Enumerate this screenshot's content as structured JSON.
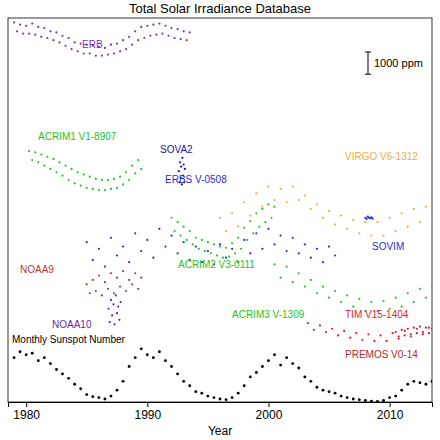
{
  "chart_data": {
    "type": "scatter",
    "title": "Total Solar Irradiance Database",
    "x_label": "Year",
    "xlim": [
      1978.5,
      2013.5
    ],
    "xticks": [
      1980,
      1990,
      2000,
      2010
    ],
    "ylim": [
      0,
      17300
    ],
    "y2lim": [
      0,
      1300
    ],
    "tick_labels": "x",
    "marker": "dot",
    "scale_bar": {
      "label": "1000 ppm",
      "value": 1000
    },
    "series": [
      {
        "name": "ERB",
        "color": "#7b2fbe",
        "x": [
          1979.0,
          1979.25,
          1979.5,
          1979.75,
          1980.0,
          1980.25,
          1980.5,
          1980.75,
          1981.0,
          1981.25,
          1981.5,
          1981.75,
          1982.0,
          1982.25,
          1982.5,
          1982.75,
          1983.0,
          1983.25,
          1983.5,
          1983.75,
          1984.0,
          1984.25,
          1984.5,
          1984.75,
          1985.0,
          1985.25,
          1985.5,
          1985.75,
          1986.0,
          1986.25,
          1986.5,
          1986.75,
          1987.0,
          1987.25,
          1987.5,
          1987.75,
          1988.0,
          1988.25,
          1988.5,
          1988.75,
          1989.0,
          1989.25,
          1989.5,
          1989.75,
          1990.0,
          1990.25,
          1990.5,
          1990.75,
          1991.0,
          1991.25,
          1991.5,
          1991.75,
          1992.0,
          1992.25,
          1992.5,
          1992.75,
          1993.0,
          1993.25,
          1993.5
        ],
        "values": [
          17100,
          16700,
          17000,
          16600,
          16950,
          16600,
          17050,
          16550,
          16900,
          16450,
          16850,
          16400,
          16700,
          16300,
          16650,
          16200,
          16500,
          16050,
          16400,
          15900,
          16200,
          15800,
          16150,
          15700,
          16100,
          15700,
          16050,
          15600,
          16000,
          15600,
          15950,
          15650,
          16100,
          15700,
          16150,
          15800,
          16300,
          15900,
          16450,
          16100,
          16700,
          16300,
          16900,
          16400,
          16950,
          16500,
          17000,
          16550,
          17050,
          16600,
          16950,
          16500,
          16850,
          16400,
          16800,
          16350,
          16700,
          16300,
          16650
        ]
      },
      {
        "name": "ACRIM1 V1-8907",
        "color": "#22c422",
        "x": [
          1980.25,
          1980.5,
          1980.75,
          1981.0,
          1981.25,
          1981.5,
          1981.75,
          1982.0,
          1982.25,
          1982.5,
          1982.75,
          1983.0,
          1983.25,
          1983.5,
          1983.75,
          1984.0,
          1984.25,
          1984.5,
          1984.75,
          1985.0,
          1985.25,
          1985.5,
          1985.75,
          1986.0,
          1986.25,
          1986.5,
          1986.75,
          1987.0,
          1987.25,
          1987.5,
          1987.75,
          1988.0,
          1988.25,
          1988.5,
          1988.75,
          1989.0,
          1989.25,
          1989.5
        ],
        "values": [
          11300,
          10900,
          11250,
          10800,
          11150,
          10650,
          11050,
          10500,
          10950,
          10350,
          10800,
          10200,
          10650,
          10000,
          10500,
          9850,
          10350,
          9750,
          10250,
          9650,
          10150,
          9600,
          10050,
          9550,
          10000,
          9550,
          10000,
          9600,
          10050,
          9650,
          10150,
          9800,
          10350,
          10000,
          10650,
          10300,
          10900,
          10500
        ]
      },
      {
        "name": "NOAA9",
        "color": "#b03a2e",
        "x": [
          1985.0,
          1985.25,
          1985.5,
          1985.75,
          1986.0,
          1986.25,
          1986.5,
          1986.75,
          1987.0,
          1987.25,
          1987.5,
          1987.75,
          1988.0,
          1988.25,
          1988.5,
          1988.75,
          1989.0,
          1989.25,
          1989.5
        ],
        "values": [
          5300,
          4900,
          5500,
          5000,
          5700,
          4800,
          5400,
          5100,
          5800,
          4900,
          5600,
          5200,
          5900,
          5000,
          5500,
          5300,
          5800,
          5100,
          5600
        ]
      },
      {
        "name": "NOAA10",
        "color": "#6a1fa8",
        "x": [
          1986.8,
          1986.9,
          1987.0,
          1987.1,
          1987.2,
          1987.3,
          1987.4,
          1987.5,
          1987.6,
          1987.7,
          1987.8
        ],
        "values": [
          4200,
          3600,
          4600,
          3900,
          4400,
          3500,
          4800,
          4000,
          4300,
          3700,
          4500
        ]
      },
      {
        "name": "ERBS V-0508",
        "color": "#2b2bd0",
        "x": [
          1985.0,
          1985.5,
          1986.0,
          1986.5,
          1987.0,
          1987.5,
          1988.0,
          1988.5,
          1989.0,
          1989.5,
          1990.0,
          1990.5,
          1991.0,
          1991.5,
          1992.0,
          1992.5,
          1993.0,
          1993.5,
          1994.0,
          1994.5,
          1995.0,
          1995.5,
          1996.0,
          1996.5,
          1997.0,
          1997.5,
          1998.0,
          1998.5,
          1999.0,
          1999.5,
          2000.0,
          2000.5,
          2001.0,
          2001.5,
          2002.0,
          2002.5,
          2003.0,
          2003.5,
          2004.0,
          2004.5,
          2005.0,
          2005.5
        ],
        "values": [
          7200,
          6400,
          6900,
          6100,
          7400,
          6600,
          7000,
          6300,
          7600,
          6800,
          7300,
          6500,
          7800,
          7000,
          7500,
          6700,
          7200,
          6400,
          7000,
          6300,
          6800,
          6200,
          7100,
          6500,
          6900,
          6300,
          7300,
          6700,
          7600,
          6900,
          7800,
          7100,
          7500,
          6800,
          7400,
          6700,
          7100,
          6500,
          6900,
          6300,
          7000,
          6600
        ]
      },
      {
        "name": "SOVA2",
        "color": "#1a1a9a",
        "x": [
          1992.6,
          1992.65,
          1992.7,
          1992.75,
          1992.8,
          1992.85,
          1992.9,
          1992.95,
          1993.0,
          1993.05,
          1993.1
        ],
        "values": [
          10400,
          9900,
          10800,
          10100,
          10600,
          9800,
          11000,
          10200,
          10700,
          9900,
          10500
        ]
      },
      {
        "name": "ACRIM2 V3-0111",
        "color": "#22c422",
        "x": [
          1992.0,
          1992.25,
          1992.5,
          1992.75,
          1993.0,
          1993.25,
          1993.5,
          1993.75,
          1994.0,
          1994.25,
          1994.5,
          1994.75,
          1995.0,
          1995.25,
          1995.5,
          1995.75,
          1996.0,
          1996.25,
          1996.5,
          1996.75,
          1997.0,
          1997.25,
          1997.5,
          1997.75,
          1998.0,
          1998.25,
          1998.5,
          1998.75,
          1999.0,
          1999.25,
          1999.5,
          1999.75,
          2000.0,
          2000.25,
          2000.5
        ],
        "values": [
          8300,
          7700,
          8100,
          7500,
          7900,
          7300,
          7700,
          7100,
          7400,
          6900,
          7300,
          6800,
          7200,
          6700,
          7100,
          6600,
          7000,
          6500,
          6950,
          6550,
          7150,
          6700,
          7400,
          6900,
          7850,
          7300,
          8150,
          7600,
          8500,
          7900,
          8700,
          8100,
          8900,
          8300,
          8800
        ]
      },
      {
        "name": "VIRGO V6-1312",
        "color": "#f5a742",
        "x": [
          1996.0,
          1996.5,
          1997.0,
          1997.5,
          1998.0,
          1998.5,
          1999.0,
          1999.5,
          2000.0,
          2000.5,
          2001.0,
          2001.5,
          2002.0,
          2002.5,
          2003.0,
          2003.5,
          2004.0,
          2004.5,
          2005.0,
          2005.5,
          2006.0,
          2006.5,
          2007.0,
          2007.5,
          2008.0,
          2008.5,
          2009.0,
          2009.5,
          2010.0,
          2010.5,
          2011.0,
          2011.5,
          2012.0,
          2012.5,
          2013.0,
          2013.5
        ],
        "values": [
          8300,
          7700,
          8500,
          7900,
          9000,
          8400,
          9400,
          8800,
          9700,
          9100,
          9600,
          9000,
          9700,
          9100,
          9300,
          8700,
          8900,
          8300,
          8600,
          8000,
          8400,
          7800,
          8200,
          7600,
          8100,
          7500,
          8100,
          7500,
          8300,
          7700,
          8500,
          7900,
          8700,
          8100,
          8800,
          8200
        ]
      },
      {
        "name": "ACRIM3 V-1309",
        "color": "#22c422",
        "x": [
          2000.5,
          2001.0,
          2001.5,
          2002.0,
          2002.5,
          2003.0,
          2003.5,
          2004.0,
          2004.5,
          2005.0,
          2005.5,
          2006.0,
          2006.5,
          2007.0,
          2007.5,
          2008.0,
          2008.5,
          2009.0,
          2009.5,
          2010.0,
          2010.5,
          2011.0,
          2011.5,
          2012.0,
          2012.5,
          2013.0,
          2013.5
        ],
        "values": [
          6200,
          5600,
          6100,
          5400,
          5800,
          5200,
          5500,
          4900,
          5200,
          4700,
          5000,
          4500,
          4800,
          4300,
          4650,
          4100,
          4500,
          4100,
          4550,
          4200,
          4700,
          4300,
          4900,
          4500,
          5100,
          4700,
          5200
        ]
      },
      {
        "name": "TIM V15-1404",
        "color": "#e01f1f",
        "x": [
          2003.25,
          2003.75,
          2004.25,
          2004.75,
          2005.25,
          2005.75,
          2006.25,
          2006.75,
          2007.25,
          2007.75,
          2008.25,
          2008.75,
          2009.25,
          2009.75,
          2010.25,
          2010.75,
          2011.25,
          2011.75,
          2012.25,
          2012.75,
          2013.25
        ],
        "values": [
          3550,
          3250,
          3450,
          3150,
          3300,
          3000,
          3200,
          2900,
          3100,
          2800,
          3050,
          2750,
          3000,
          2750,
          3100,
          2850,
          3200,
          2950,
          3300,
          3050,
          3350
        ]
      },
      {
        "name": "PREMOS V0-14",
        "color": "#b02828",
        "x": [
          2010.5,
          2010.75,
          2011.0,
          2011.25,
          2011.5,
          2011.75,
          2012.0,
          2012.25,
          2012.5,
          2012.75,
          2013.0,
          2013.25,
          2013.5
        ],
        "values": [
          3150,
          2950,
          3250,
          3000,
          3300,
          3050,
          3350,
          3100,
          3400,
          3150,
          3350,
          3100,
          3300
        ]
      },
      {
        "name": "SOVIM",
        "color": "#2b2bd0",
        "x": [
          2008.0,
          2008.1,
          2008.2,
          2008.3,
          2008.4,
          2008.5,
          2008.6
        ],
        "values": [
          8300,
          8250,
          8350,
          8300,
          8280,
          8320,
          8260
        ]
      },
      {
        "name": "Monthly Sunspot Number",
        "color": "#000000",
        "axis": "y2",
        "x": [
          1979.0,
          1979.5,
          1980.0,
          1980.5,
          1981.0,
          1981.5,
          1982.0,
          1982.5,
          1983.0,
          1983.5,
          1984.0,
          1984.5,
          1985.0,
          1985.5,
          1986.0,
          1986.5,
          1987.0,
          1987.5,
          1988.0,
          1988.5,
          1989.0,
          1989.5,
          1990.0,
          1990.5,
          1991.0,
          1991.5,
          1992.0,
          1992.5,
          1993.0,
          1993.5,
          1994.0,
          1994.5,
          1995.0,
          1995.5,
          1996.0,
          1996.5,
          1997.0,
          1997.5,
          1998.0,
          1998.5,
          1999.0,
          1999.5,
          2000.0,
          2000.5,
          2001.0,
          2001.5,
          2002.0,
          2002.5,
          2003.0,
          2003.5,
          2004.0,
          2004.5,
          2005.0,
          2005.5,
          2006.0,
          2006.5,
          2007.0,
          2007.5,
          2008.0,
          2008.5,
          2009.0,
          2009.5,
          2010.0,
          2010.5,
          2011.0,
          2011.5,
          2012.0,
          2012.5,
          2013.0,
          2013.5
        ],
        "values": [
          150,
          170,
          160,
          165,
          140,
          150,
          130,
          110,
          95,
          80,
          60,
          45,
          25,
          18,
          15,
          10,
          20,
          40,
          70,
          120,
          150,
          180,
          160,
          150,
          170,
          140,
          120,
          95,
          70,
          55,
          35,
          30,
          20,
          15,
          10,
          8,
          15,
          30,
          55,
          85,
          100,
          120,
          140,
          160,
          125,
          150,
          130,
          115,
          85,
          70,
          50,
          40,
          35,
          30,
          20,
          15,
          10,
          8,
          5,
          3,
          2,
          5,
          15,
          20,
          40,
          60,
          70,
          65,
          60,
          70
        ]
      }
    ]
  }
}
